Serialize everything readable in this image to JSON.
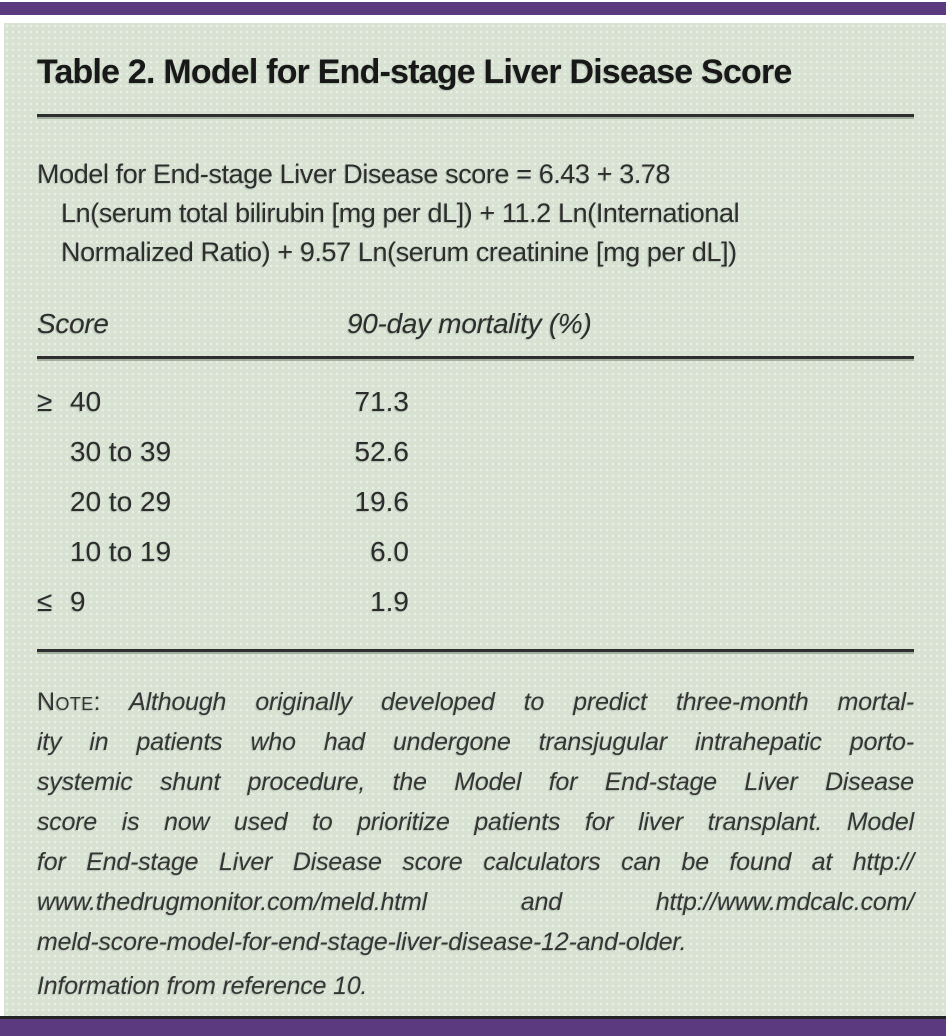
{
  "figure": {
    "accent_color": "#5b3a80",
    "panel_color": "#d8e2d3",
    "title": "Table 2. Model for End-stage Liver Disease Score",
    "formula_lines": [
      {
        "text": "Model for End-stage Liver Disease score = 6.43 + 3.78",
        "indent": false
      },
      {
        "text": "Ln(serum total bilirubin [mg per dL]) + 11.2 Ln(International",
        "indent": true
      },
      {
        "text": "Normalized Ratio) + 9.57 Ln(serum creatinine [mg per dL])",
        "indent": true
      }
    ],
    "columns": [
      "Score",
      "90-day mortality (%)"
    ],
    "rows": [
      {
        "prefix": "≥",
        "score": "40",
        "mortality": "71.3"
      },
      {
        "prefix": "",
        "score": "30 to 39",
        "mortality": "52.6"
      },
      {
        "prefix": "",
        "score": "20 to 29",
        "mortality": "19.6"
      },
      {
        "prefix": "",
        "score": "10 to 19",
        "mortality": "6.0"
      },
      {
        "prefix": "≤",
        "score": "9",
        "mortality": "1.9"
      }
    ],
    "note": {
      "label": "Note:",
      "lines": [
        "Although originally developed to predict three-month mortal-",
        "ity in patients who had undergone transjugular intrahepatic porto-",
        "systemic shunt procedure, the Model for End-stage Liver Disease",
        "score is now used to prioritize patients for liver transplant. Model",
        "for End-stage Liver Disease score calculators can be found at http://",
        "www.thedrugmonitor.com/meld.html and http://www.mdcalc.com/",
        "meld-score-model-for-end-stage-liver-disease-12-and-older."
      ]
    },
    "source": "Information from reference 10."
  }
}
